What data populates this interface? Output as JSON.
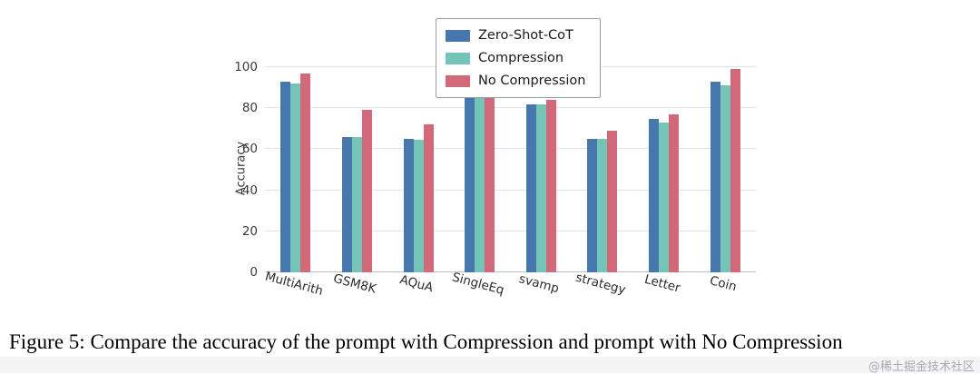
{
  "figure": {
    "caption": "Figure 5: Compare the accuracy of the prompt with Compression and prompt with No Compression",
    "watermark": "@稀土掘金技术社区"
  },
  "chart_data": {
    "type": "bar",
    "title": "",
    "xlabel": "",
    "ylabel": "Accuracy",
    "ylim": [
      0,
      100
    ],
    "yticks": [
      0,
      20,
      40,
      60,
      80,
      100
    ],
    "grid": true,
    "legend_position": "top-center",
    "categories": [
      "MultiArith",
      "GSM8K",
      "AQuA",
      "SingleEq",
      "svamp",
      "strategy",
      "Letter",
      "Coin"
    ],
    "series": [
      {
        "name": "Zero-Shot-CoT",
        "color": "#4678ae",
        "values": [
          93,
          66,
          65,
          91,
          82,
          65,
          75,
          93
        ]
      },
      {
        "name": "Compression",
        "color": "#74c5b7",
        "values": [
          92,
          66,
          64.5,
          91.5,
          82,
          65,
          73,
          91
        ]
      },
      {
        "name": "No Compression",
        "color": "#d2697a",
        "values": [
          97,
          79,
          72,
          92,
          84,
          69,
          77,
          99
        ]
      }
    ]
  }
}
